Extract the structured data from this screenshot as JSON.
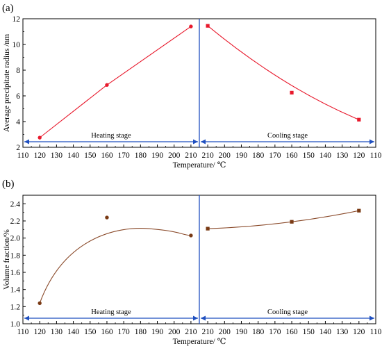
{
  "chart_data": [
    {
      "panel_label": "(a)",
      "type": "scatter",
      "xlabel": "Temperature/ ℃",
      "ylabel": "Average precipitate radius /nm",
      "ylim": [
        2,
        12
      ],
      "yticks": [
        "2",
        "4",
        "6",
        "8",
        "10",
        "12"
      ],
      "xticks": [
        "110",
        "120",
        "130",
        "140",
        "150",
        "160",
        "170",
        "180",
        "190",
        "200",
        "210",
        "210",
        "200",
        "190",
        "180",
        "170",
        "160",
        "150",
        "140",
        "130",
        "120",
        "110"
      ],
      "grid": false,
      "marker_color": "#e8192c",
      "line_color": "#e8192c",
      "series": [
        {
          "name": "Heating stage",
          "x": [
            120,
            160,
            210
          ],
          "y": [
            2.75,
            6.85,
            11.4
          ]
        },
        {
          "name": "Cooling stage",
          "x": [
            210,
            160,
            120
          ],
          "y": [
            11.45,
            6.25,
            4.15
          ]
        }
      ],
      "arrow_color": "#1f4fbf",
      "divider_color": "#1f4fbf"
    },
    {
      "panel_label": "(b)",
      "type": "scatter",
      "xlabel": "Temperature/ ℃",
      "ylabel": "Volume fraction/%",
      "ylim": [
        1.0,
        2.5
      ],
      "yticks": [
        "1.0",
        "1.2",
        "1.4",
        "1.6",
        "1.8",
        "2.0",
        "2.2",
        "2.4"
      ],
      "xticks": [
        "110",
        "120",
        "130",
        "140",
        "150",
        "160",
        "170",
        "180",
        "190",
        "200",
        "210",
        "210",
        "200",
        "190",
        "180",
        "170",
        "160",
        "150",
        "140",
        "130",
        "120",
        "110"
      ],
      "grid": false,
      "marker_color": "#7a3a14",
      "line_color": "#8a4a2a",
      "series": [
        {
          "name": "Heating stage",
          "x": [
            120,
            160,
            210
          ],
          "y": [
            1.24,
            2.24,
            2.03
          ]
        },
        {
          "name": "Cooling stage",
          "x": [
            210,
            160,
            120
          ],
          "y": [
            2.11,
            2.19,
            2.32
          ]
        }
      ],
      "arrow_color": "#1f4fbf",
      "divider_color": "#1f4fbf"
    }
  ]
}
